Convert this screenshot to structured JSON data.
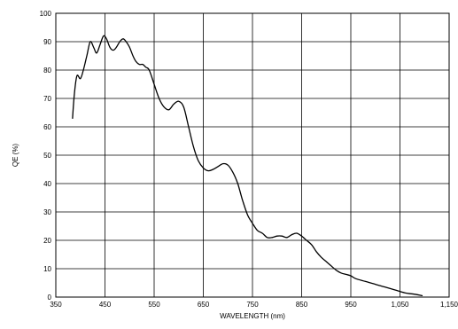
{
  "chart_data": {
    "type": "line",
    "title": "",
    "xlabel": "WAVELENGTH (nm)",
    "ylabel": "QE (%)",
    "xlim": [
      350,
      1150
    ],
    "ylim": [
      0,
      100
    ],
    "x_ticks": [
      350,
      450,
      550,
      650,
      750,
      850,
      950,
      1050,
      1150
    ],
    "x_tick_labels": [
      "350",
      "450",
      "550",
      "650",
      "750",
      "850",
      "950",
      "1,050",
      "1,150"
    ],
    "y_ticks": [
      0,
      10,
      20,
      30,
      40,
      50,
      60,
      70,
      80,
      90,
      100
    ],
    "y_tick_labels": [
      "0",
      "10",
      "20",
      "30",
      "40",
      "50",
      "60",
      "70",
      "80",
      "90",
      "100"
    ],
    "grid": true,
    "series": [
      {
        "x": [
          384,
          388,
          393,
          400,
          406,
          413,
          420,
          427,
          433,
          440,
          447,
          453,
          460,
          467,
          473,
          480,
          487,
          493,
          500,
          507,
          513,
          520,
          527,
          533,
          540,
          550,
          560,
          570,
          580,
          590,
          600,
          610,
          620,
          630,
          640,
          650,
          660,
          670,
          680,
          690,
          700,
          710,
          720,
          730,
          740,
          750,
          760,
          770,
          780,
          790,
          800,
          810,
          820,
          830,
          840,
          850,
          860,
          870,
          880,
          890,
          900,
          910,
          920,
          930,
          940,
          950,
          960,
          980,
          1000,
          1020,
          1040,
          1060,
          1080,
          1095
        ],
        "values": [
          63,
          72,
          78,
          77,
          80,
          85,
          90,
          88,
          86,
          89,
          92,
          91,
          88,
          87,
          88,
          90,
          91,
          90,
          88,
          85,
          83,
          82,
          82,
          81,
          80,
          75,
          70,
          67,
          66,
          68,
          69,
          67,
          60,
          53,
          48,
          45.5,
          44.5,
          45,
          46,
          47,
          46.5,
          44,
          40,
          34,
          29,
          26,
          23.5,
          22.5,
          21,
          21,
          21.5,
          21.5,
          21,
          22,
          22.5,
          21.5,
          20,
          18.5,
          16,
          14,
          12.5,
          11,
          9.5,
          8.5,
          8,
          7.5,
          6.5,
          5.5,
          4.5,
          3.5,
          2.5,
          1.5,
          1,
          0.5
        ]
      }
    ]
  }
}
